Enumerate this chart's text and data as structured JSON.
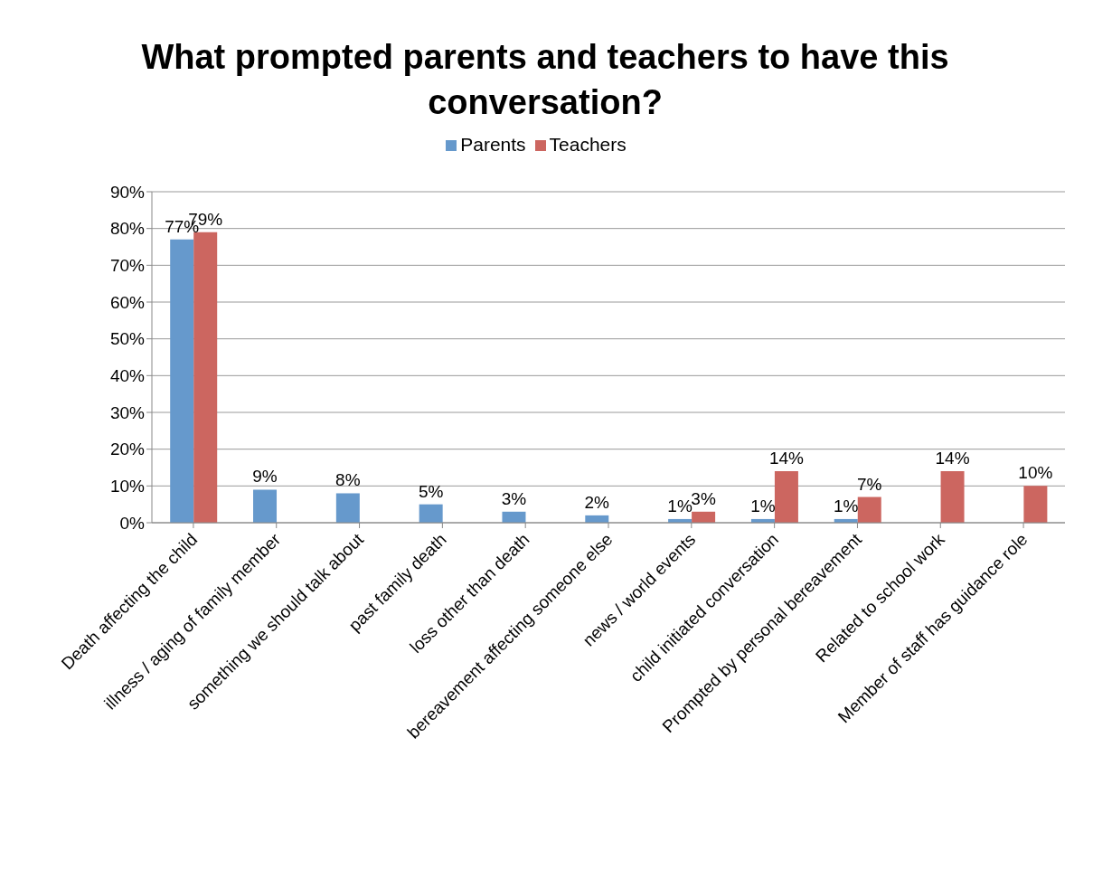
{
  "chart_data": {
    "type": "bar",
    "title": "What prompted parents and teachers to have this conversation?",
    "categories": [
      "Death affecting the child",
      "illness / aging of family member",
      "something we should talk about",
      "past family death",
      "loss other than death",
      "bereavement affecting someone else",
      "news / world events",
      "child initiated conversation",
      "Prompted by personal bereavement",
      "Related to school work",
      "Member of staff has guidance role"
    ],
    "series": [
      {
        "name": "Parents",
        "color": "#6699cc",
        "values": [
          77,
          9,
          8,
          5,
          3,
          2,
          1,
          1,
          1,
          null,
          null
        ],
        "value_labels": [
          "77%",
          "9%",
          "8%",
          "5%",
          "3%",
          "2%",
          "1%",
          "1%",
          "1%",
          null,
          null
        ]
      },
      {
        "name": "Teachers",
        "color": "#cc6660",
        "values": [
          79,
          null,
          null,
          null,
          null,
          null,
          3,
          14,
          7,
          14,
          10
        ],
        "value_labels": [
          "79%",
          null,
          null,
          null,
          null,
          null,
          "3%",
          "14%",
          "7%",
          "14%",
          "10%"
        ]
      }
    ],
    "ylim": [
      0,
      90
    ],
    "yticks": [
      {
        "value": 0,
        "label": "0%"
      },
      {
        "value": 10,
        "label": "10%"
      },
      {
        "value": 20,
        "label": "20%"
      },
      {
        "value": 30,
        "label": "30%"
      },
      {
        "value": 40,
        "label": "40%"
      },
      {
        "value": 50,
        "label": "50%"
      },
      {
        "value": 60,
        "label": "60%"
      },
      {
        "value": 70,
        "label": "70%"
      },
      {
        "value": 80,
        "label": "80%"
      },
      {
        "value": 90,
        "label": "90%"
      }
    ],
    "grid": "y",
    "legend": "top"
  }
}
